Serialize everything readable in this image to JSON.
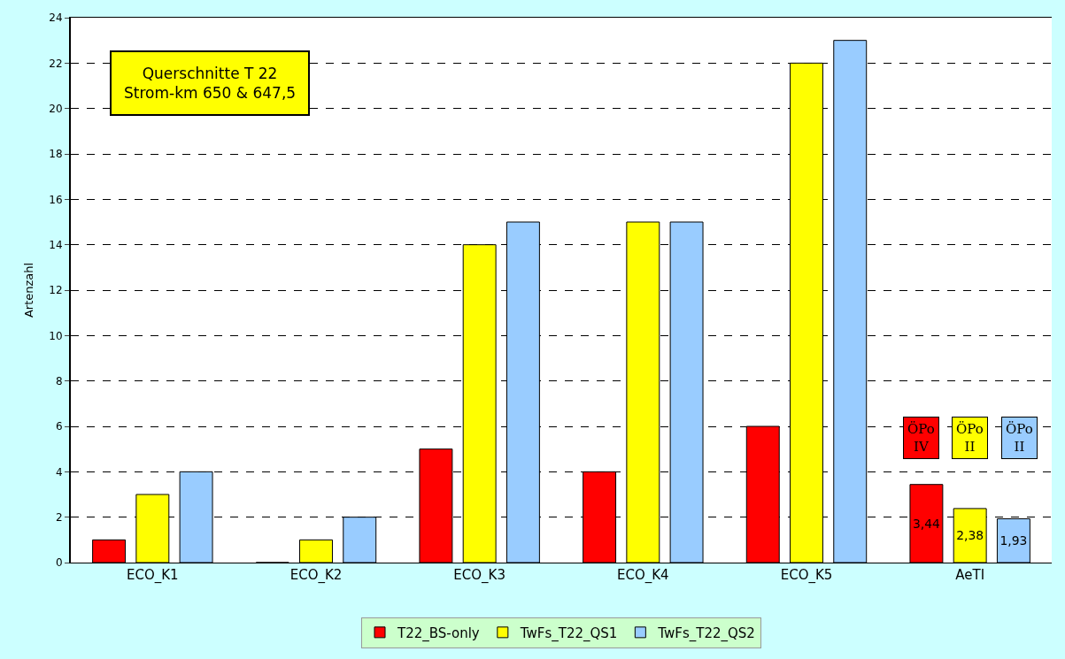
{
  "chart_data": {
    "type": "bar",
    "ylabel": "Artenzahl",
    "categories": [
      "ECO_K1",
      "ECO_K2",
      "ECO_K3",
      "ECO_K4",
      "ECO_K5",
      "AeTI"
    ],
    "series": [
      {
        "name": "T22_BS-only",
        "color": "#ff0000",
        "values": [
          1,
          0,
          5,
          4,
          6,
          3.44
        ],
        "value_labels": [
          null,
          null,
          null,
          null,
          null,
          "3,44"
        ]
      },
      {
        "name": "TwFs_T22_QS1",
        "color": "#ffff00",
        "values": [
          3,
          1,
          14,
          15,
          22,
          2.38
        ],
        "value_labels": [
          null,
          null,
          null,
          null,
          null,
          "2,38"
        ]
      },
      {
        "name": "TwFs_T22_QS2",
        "color": "#99ccff",
        "values": [
          4,
          2,
          15,
          15,
          23,
          1.93
        ],
        "value_labels": [
          null,
          null,
          null,
          null,
          null,
          "1,93"
        ]
      }
    ],
    "ylim": [
      0,
      24
    ],
    "yticks": [
      0,
      2,
      4,
      6,
      8,
      10,
      12,
      14,
      16,
      18,
      20,
      22,
      24
    ],
    "grid": "y",
    "legend": "bottom",
    "annotations": [
      "Querschnitte T 22\nStrom-km 650 & 647,5",
      "ÖPo\nIV",
      "ÖPo\nII",
      "ÖPo\nII"
    ]
  }
}
